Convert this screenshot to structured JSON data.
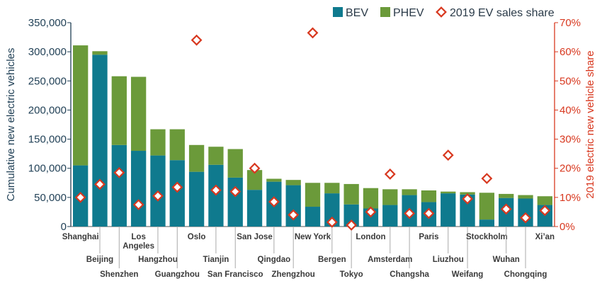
{
  "chart_data": {
    "type": "bar",
    "stacked": true,
    "categories": [
      "Shanghai",
      "Beijing",
      "Shenzhen",
      "Los Angeles",
      "Hangzhou",
      "Guangzhou",
      "Oslo",
      "Tianjin",
      "San Francisco",
      "San Jose",
      "Qingdao",
      "Zhengzhou",
      "New York",
      "Bergen",
      "Tokyo",
      "London",
      "Amsterdam",
      "Changsha",
      "Paris",
      "Liuzhou",
      "Weifang",
      "Stockholm",
      "Wuhan",
      "Chongqing",
      "Xi'an"
    ],
    "category_labels": [
      {
        "lines": [
          "Shanghai"
        ],
        "row": 0
      },
      {
        "lines": [
          "Beijing"
        ],
        "row": 1
      },
      {
        "lines": [
          "Shenzhen"
        ],
        "row": 2
      },
      {
        "lines": [
          "Los",
          "Angeles"
        ],
        "row": 0
      },
      {
        "lines": [
          "Hangzhou"
        ],
        "row": 1
      },
      {
        "lines": [
          "Guangzhou"
        ],
        "row": 2
      },
      {
        "lines": [
          "Oslo"
        ],
        "row": 0
      },
      {
        "lines": [
          "Tianjin"
        ],
        "row": 1
      },
      {
        "lines": [
          "San Francisco"
        ],
        "row": 2
      },
      {
        "lines": [
          "San Jose"
        ],
        "row": 0
      },
      {
        "lines": [
          "Qingdao"
        ],
        "row": 1
      },
      {
        "lines": [
          "Zhengzhou"
        ],
        "row": 2
      },
      {
        "lines": [
          "New York"
        ],
        "row": 0
      },
      {
        "lines": [
          "Bergen"
        ],
        "row": 1
      },
      {
        "lines": [
          "Tokyo"
        ],
        "row": 2
      },
      {
        "lines": [
          "London"
        ],
        "row": 0
      },
      {
        "lines": [
          "Amsterdam"
        ],
        "row": 1
      },
      {
        "lines": [
          "Changsha"
        ],
        "row": 2
      },
      {
        "lines": [
          "Paris"
        ],
        "row": 0
      },
      {
        "lines": [
          "Liuzhou"
        ],
        "row": 1
      },
      {
        "lines": [
          "Weifang"
        ],
        "row": 2
      },
      {
        "lines": [
          "Stockholm"
        ],
        "row": 0
      },
      {
        "lines": [
          "Wuhan"
        ],
        "row": 1
      },
      {
        "lines": [
          "Chongqing"
        ],
        "row": 2
      },
      {
        "lines": [
          "Xi’an"
        ],
        "row": 0
      }
    ],
    "series": [
      {
        "name": "BEV",
        "axis": "left",
        "color": "#0f7a8e",
        "values": [
          105000,
          295000,
          140000,
          130000,
          122000,
          114000,
          94000,
          106000,
          84000,
          63000,
          77000,
          71000,
          34000,
          57000,
          38000,
          31000,
          37000,
          54000,
          42000,
          57000,
          55000,
          12000,
          49000,
          48000,
          37000
        ]
      },
      {
        "name": "PHEV",
        "axis": "left",
        "color": "#6b9a3a",
        "values": [
          206000,
          6000,
          118000,
          127000,
          45000,
          53000,
          46000,
          31000,
          49000,
          34000,
          5000,
          9000,
          41000,
          18000,
          35000,
          35000,
          27000,
          10000,
          20000,
          3000,
          4000,
          46000,
          7000,
          6000,
          15000
        ]
      },
      {
        "name": "2019 EV sales share",
        "axis": "right",
        "type": "scatter",
        "color": "#d8381f",
        "values": [
          10,
          14.5,
          18.5,
          7.5,
          10.5,
          13.5,
          64,
          12.5,
          12,
          20,
          8.5,
          4,
          66.5,
          1.5,
          0.5,
          5,
          18,
          4.5,
          4.5,
          24.5,
          9.5,
          16.5,
          6,
          3,
          5.5
        ]
      }
    ],
    "ylabel": "Cumulative new electric vehicles",
    "ylabel_right": "2019 electric new vehicle share",
    "ylim": [
      0,
      350000
    ],
    "ylim_right": [
      0,
      70
    ],
    "yticks": [
      "0",
      "50,000",
      "100,000",
      "150,000",
      "200,000",
      "250,000",
      "300,000",
      "350,000"
    ],
    "yticks_right": [
      "0%",
      "10%",
      "20%",
      "30%",
      "40%",
      "50%",
      "60%",
      "70%"
    ],
    "grid": false,
    "legend_position": "top-right"
  },
  "legend": {
    "bev": "BEV",
    "phev": "PHEV",
    "share": "2019 EV sales share"
  },
  "axes": {
    "left_label": "Cumulative new electric vehicles",
    "right_label": "2019 electric new vehicle share"
  },
  "colors": {
    "bev": "#0f7a8e",
    "phev": "#6b9a3a",
    "share": "#d8381f",
    "axis_left": "#1f3f55",
    "axis_right": "#d8381f"
  }
}
